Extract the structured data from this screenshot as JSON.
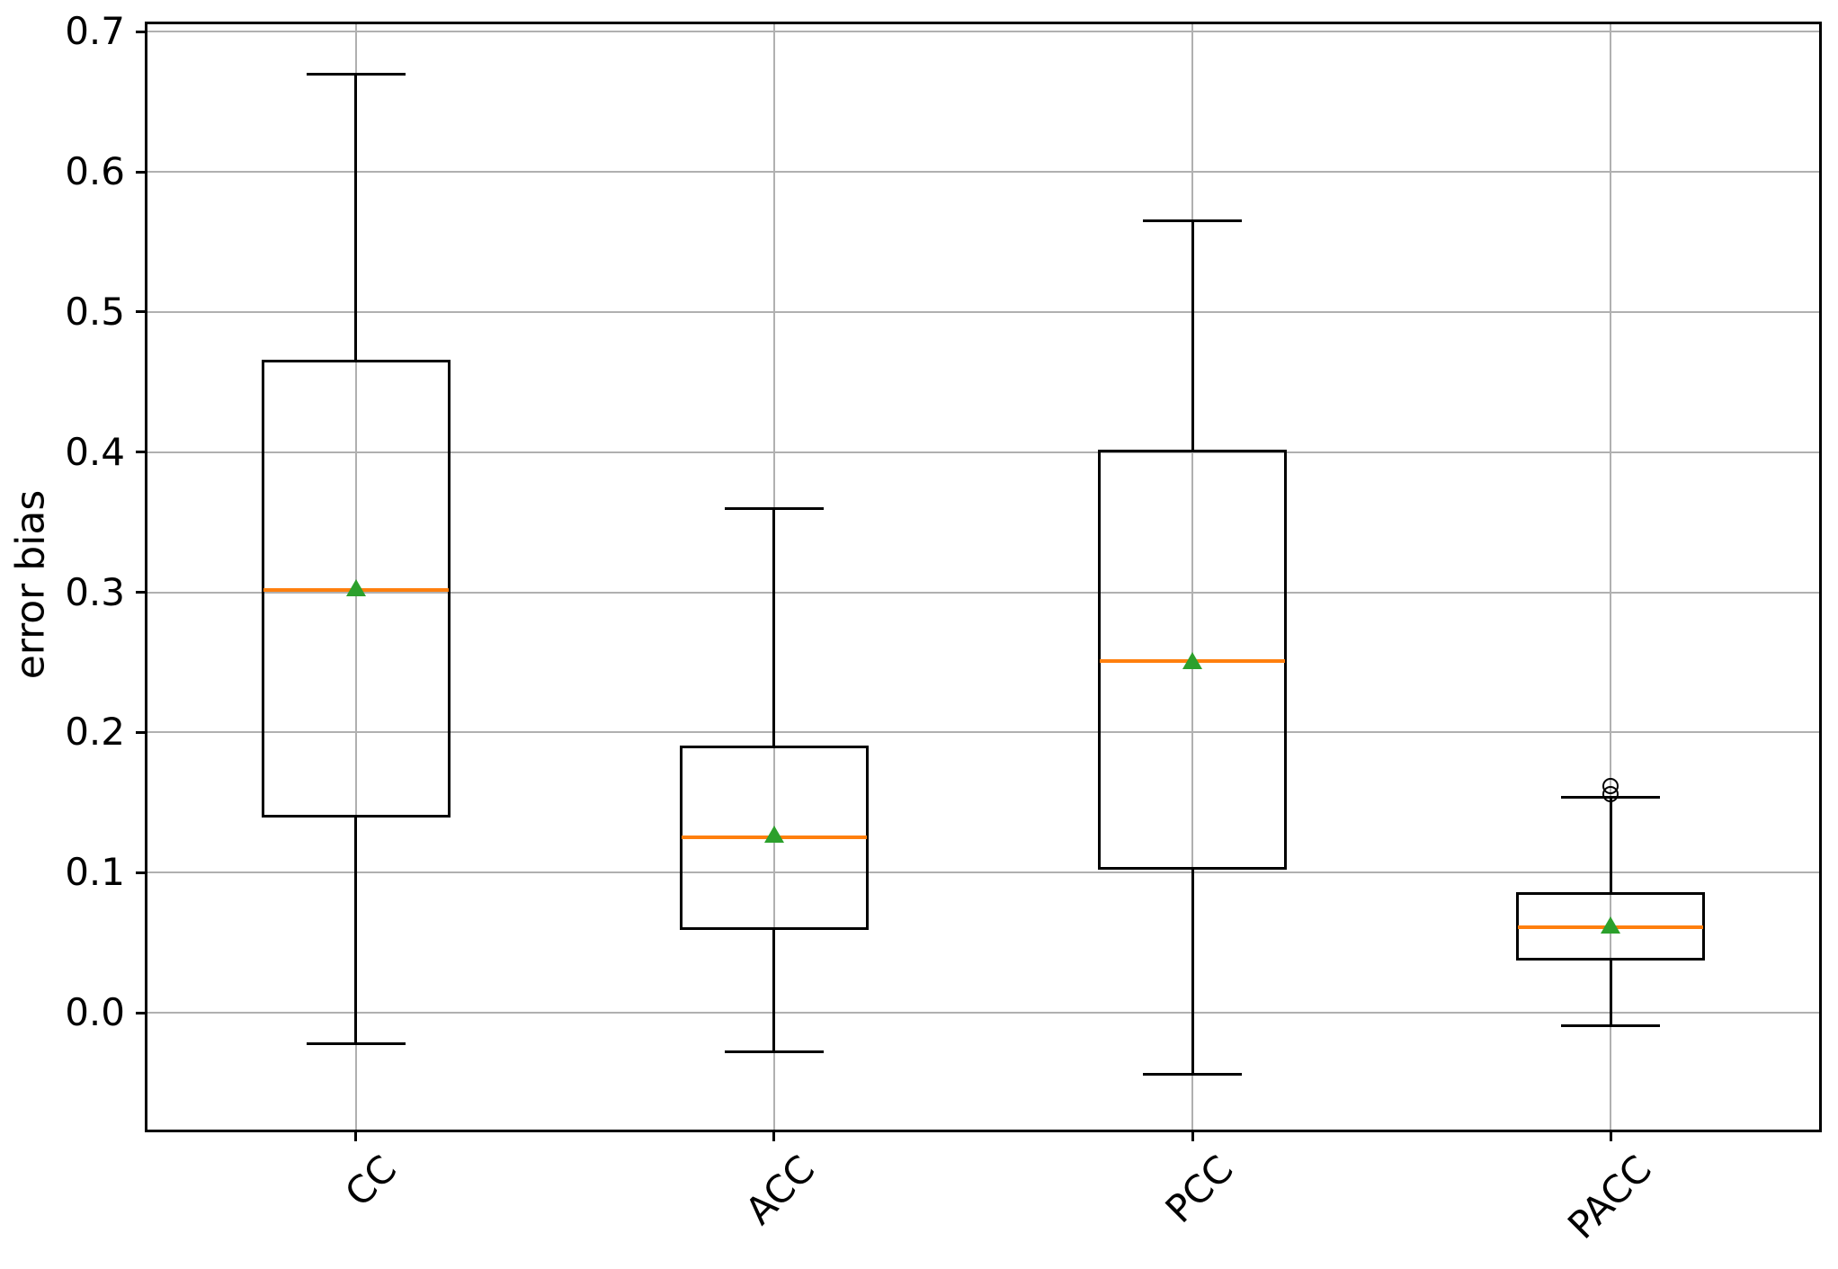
{
  "figure": {
    "background": "#ffffff"
  },
  "chart_data": {
    "type": "boxplot",
    "title": "",
    "xlabel": "",
    "ylabel": "error bias",
    "categories": [
      "CC",
      "ACC",
      "PCC",
      "PACC"
    ],
    "ylim": [
      -0.084,
      0.706
    ],
    "yticks": [
      0.0,
      0.1,
      0.2,
      0.3,
      0.4,
      0.5,
      0.6,
      0.7
    ],
    "ytick_labels": [
      "0.0",
      "0.1",
      "0.2",
      "0.3",
      "0.4",
      "0.5",
      "0.6",
      "0.7"
    ],
    "grid": true,
    "grid_axes": "both",
    "legend": "none",
    "x_label_rotation_deg": 45,
    "series": [
      {
        "name": "CC",
        "whisker_low": -0.022,
        "q1": 0.14,
        "median": 0.302,
        "q3": 0.465,
        "whisker_high": 0.67,
        "mean": 0.303,
        "outliers": []
      },
      {
        "name": "ACC",
        "whisker_low": -0.028,
        "q1": 0.06,
        "median": 0.125,
        "q3": 0.19,
        "whisker_high": 0.36,
        "mean": 0.127,
        "outliers": []
      },
      {
        "name": "PCC",
        "whisker_low": -0.044,
        "q1": 0.103,
        "median": 0.251,
        "q3": 0.401,
        "whisker_high": 0.565,
        "mean": 0.251,
        "outliers": []
      },
      {
        "name": "PACC",
        "whisker_low": -0.009,
        "q1": 0.038,
        "median": 0.061,
        "q3": 0.085,
        "whisker_high": 0.154,
        "mean": 0.062,
        "outliers": [
          0.156,
          0.162
        ]
      }
    ],
    "colors": {
      "box": "#000000",
      "whisker": "#000000",
      "median": "#ff7f0e",
      "mean": "#2ca02c",
      "grid": "#b0b0b0",
      "spine": "#000000",
      "tick_label": "#000000",
      "background": "#ffffff"
    }
  }
}
